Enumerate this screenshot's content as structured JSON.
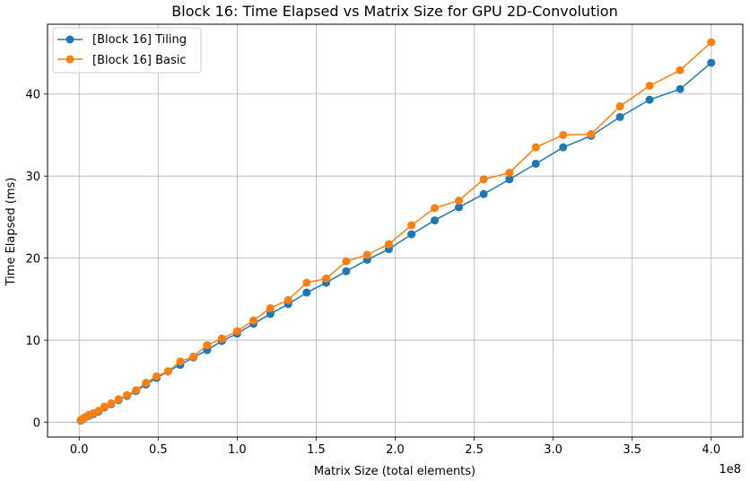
{
  "chart_data": {
    "type": "line",
    "title": "Block 16: Time Elapsed vs Matrix Size for GPU 2D-Convolution",
    "xlabel": "Matrix Size (total elements)",
    "ylabel": "Time Elapsed (ms)",
    "x_offset_label": "1e8",
    "xlim": [
      -0.2,
      4.2
    ],
    "ylim": [
      -1.8,
      48.5
    ],
    "x_scale_note": "x values in units of 1e8",
    "x_ticks": [
      0.0,
      0.5,
      1.0,
      1.5,
      2.0,
      2.5,
      3.0,
      3.5,
      4.0
    ],
    "x_tick_labels": [
      "0.0",
      "0.5",
      "1.0",
      "1.5",
      "2.0",
      "2.5",
      "3.0",
      "3.5",
      "4.0"
    ],
    "y_ticks": [
      0,
      10,
      20,
      30,
      40
    ],
    "y_tick_labels": [
      "0",
      "10",
      "20",
      "30",
      "40"
    ],
    "grid": true,
    "legend_position": "top-left",
    "x": [
      0.01,
      0.023,
      0.04,
      0.063,
      0.09,
      0.123,
      0.16,
      0.203,
      0.25,
      0.303,
      0.36,
      0.423,
      0.49,
      0.563,
      0.64,
      0.723,
      0.81,
      0.903,
      1.0,
      1.103,
      1.21,
      1.323,
      1.44,
      1.563,
      1.69,
      1.823,
      1.96,
      2.103,
      2.25,
      2.403,
      2.56,
      2.723,
      2.89,
      3.063,
      3.24,
      3.423,
      3.61,
      3.803,
      4.0
    ],
    "series": [
      {
        "name": "[Block 16] Tiling",
        "color": "#1f77b4",
        "values": [
          0.2,
          0.4,
          0.6,
          0.8,
          1.0,
          1.3,
          1.8,
          2.2,
          2.7,
          3.2,
          3.8,
          4.6,
          5.4,
          6.2,
          7.0,
          7.9,
          8.8,
          9.9,
          10.8,
          12.0,
          13.2,
          14.4,
          15.8,
          17.0,
          18.4,
          19.8,
          21.1,
          22.9,
          24.6,
          26.2,
          27.8,
          29.6,
          31.5,
          33.5,
          34.9,
          37.2,
          39.3,
          40.6,
          43.8
        ]
      },
      {
        "name": "[Block 16] Basic",
        "color": "#ff7f0e",
        "values": [
          0.25,
          0.45,
          0.65,
          0.9,
          1.1,
          1.4,
          1.9,
          2.3,
          2.8,
          3.3,
          3.9,
          4.8,
          5.6,
          6.2,
          7.4,
          8.0,
          9.4,
          10.2,
          11.1,
          12.4,
          13.9,
          14.9,
          17.0,
          17.5,
          19.6,
          20.4,
          21.7,
          24.0,
          26.1,
          27.0,
          29.6,
          30.4,
          33.5,
          35.0,
          35.1,
          38.5,
          41.0,
          42.9,
          46.3
        ]
      }
    ]
  }
}
